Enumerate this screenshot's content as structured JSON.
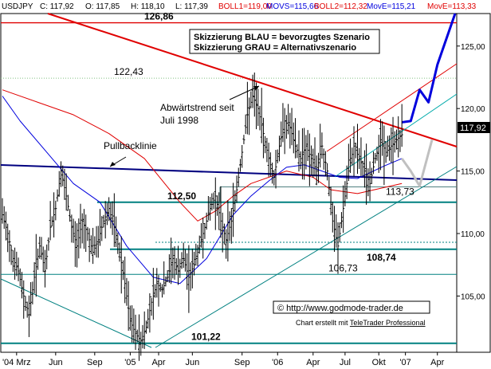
{
  "header": {
    "symbol": "USDJPY",
    "c_label": "C: 117,92",
    "o_label": "O: 117,85",
    "h_label": "H: 118,10",
    "l_label": "L: 117,39",
    "boll1_label": "BOLL1=119,00",
    "movs_label": "MOVS=115,66",
    "boll2_label": "BOLL2=112,32",
    "move_label": "MovE=115,21",
    "move2_label": "MovE=113,33"
  },
  "legend": {
    "line1": "Skizzierung BLAU = bevorzugtes Szenario",
    "line2": "Skizzierung GRAU = Alternativszenario"
  },
  "annotations": {
    "trend_text1": "Abwärtstrend seit",
    "trend_text2": "Juli 1998",
    "pullback_text": "Pullbacklinie",
    "copyright": "© http://www.godmode-trader.de",
    "created_prefix": "Chart erstellt mit ",
    "created_brand": "TeleTrader Professional",
    "last_price": "117,92"
  },
  "colors": {
    "red": "#e00000",
    "navy": "#000080",
    "blue": "#0000dd",
    "teal": "#008080",
    "grey": "#c0c0c0",
    "green_dotted": "#80c080"
  },
  "chart_data": {
    "type": "line",
    "title": "USDJPY",
    "y_axis_ticks": [
      105,
      110,
      115,
      120,
      125
    ],
    "y_axis_tick_labels": [
      "105,00",
      "110,00",
      "115,00",
      "120,00",
      "125,00"
    ],
    "ylim": [
      100.5,
      127.6
    ],
    "x_axis_labels": [
      "'04 Mrz",
      "Jun",
      "Sep",
      "'05",
      "Apr",
      "Jun",
      "Sep",
      "'06",
      "Apr",
      "Jul",
      "Okt",
      "'07",
      "Apr"
    ],
    "levels": [
      {
        "label": "126,86",
        "value": 126.86
      },
      {
        "label": "122,43",
        "value": 122.43
      },
      {
        "label": "112,50",
        "value": 112.5
      },
      {
        "label": "113,73",
        "value": 113.73
      },
      {
        "label": "108,74",
        "value": 108.74
      },
      {
        "label": "106,73",
        "value": 106.73
      },
      {
        "label": "101,22",
        "value": 101.22
      }
    ],
    "series": [
      {
        "name": "USDJPY",
        "values": [
          [
            0,
            111.5
          ],
          [
            3,
            110.0
          ],
          [
            6,
            108.0
          ],
          [
            9,
            107.0
          ],
          [
            12,
            105.0
          ],
          [
            15,
            103.5
          ],
          [
            18,
            106.5
          ],
          [
            21,
            109.0
          ],
          [
            24,
            107.0
          ],
          [
            27,
            110.5
          ],
          [
            30,
            112.0
          ],
          [
            33,
            115.0
          ],
          [
            36,
            113.0
          ],
          [
            39,
            110.5
          ],
          [
            42,
            109.0
          ],
          [
            45,
            111.0
          ],
          [
            48,
            110.0
          ],
          [
            51,
            108.5
          ],
          [
            54,
            109.5
          ],
          [
            57,
            111.0
          ],
          [
            60,
            112.0
          ],
          [
            63,
            110.5
          ],
          [
            66,
            108.5
          ],
          [
            69,
            106.0
          ],
          [
            72,
            103.0
          ],
          [
            75,
            102.0
          ],
          [
            78,
            101.4
          ],
          [
            81,
            102.5
          ],
          [
            84,
            104.5
          ],
          [
            87,
            106.0
          ],
          [
            90,
            105.5
          ],
          [
            93,
            106.5
          ],
          [
            96,
            108.0
          ],
          [
            99,
            107.0
          ],
          [
            102,
            108.0
          ],
          [
            105,
            106.5
          ],
          [
            108,
            107.5
          ],
          [
            111,
            109.0
          ],
          [
            114,
            110.5
          ],
          [
            117,
            112.0
          ],
          [
            120,
            113.0
          ],
          [
            123,
            111.0
          ],
          [
            126,
            109.5
          ],
          [
            129,
            111.0
          ],
          [
            132,
            113.5
          ],
          [
            135,
            116.5
          ],
          [
            138,
            119.5
          ],
          [
            141,
            121.0
          ],
          [
            144,
            120.0
          ],
          [
            147,
            118.0
          ],
          [
            150,
            116.0
          ],
          [
            153,
            114.5
          ],
          [
            156,
            117.0
          ],
          [
            159,
            119.0
          ],
          [
            162,
            118.5
          ],
          [
            165,
            117.0
          ],
          [
            168,
            116.0
          ],
          [
            171,
            117.0
          ],
          [
            174,
            116.0
          ],
          [
            177,
            115.0
          ],
          [
            180,
            117.0
          ],
          [
            183,
            115.0
          ],
          [
            186,
            111.0
          ],
          [
            189,
            109.0
          ],
          [
            192,
            112.0
          ],
          [
            195,
            115.0
          ],
          [
            198,
            117.0
          ],
          [
            201,
            116.0
          ],
          [
            204,
            115.0
          ],
          [
            207,
            114.0
          ],
          [
            210,
            116.0
          ],
          [
            213,
            117.5
          ],
          [
            216,
            116.5
          ],
          [
            219,
            117.0
          ],
          [
            222,
            117.5
          ],
          [
            225,
            117.9
          ]
        ]
      },
      {
        "name": "BOLL",
        "values": [
          [
            0,
            121.5
          ],
          [
            20,
            120.5
          ],
          [
            40,
            119.5
          ],
          [
            60,
            118.0
          ],
          [
            80,
            116.0
          ],
          [
            100,
            112.5
          ],
          [
            110,
            111.0
          ],
          [
            120,
            111.8
          ],
          [
            130,
            113.0
          ],
          [
            140,
            114.0
          ],
          [
            160,
            115.0
          ],
          [
            175,
            114.5
          ],
          [
            185,
            113.5
          ],
          [
            200,
            113.2
          ],
          [
            225,
            114.0
          ]
        ]
      },
      {
        "name": "MOVS",
        "values": [
          [
            0,
            121.0
          ],
          [
            10,
            119.0
          ],
          [
            25,
            116.5
          ],
          [
            40,
            114.0
          ],
          [
            55,
            112.5
          ],
          [
            70,
            109.0
          ],
          [
            85,
            106.5
          ],
          [
            100,
            106.0
          ],
          [
            115,
            108.0
          ],
          [
            130,
            111.5
          ],
          [
            140,
            113.0
          ],
          [
            150,
            114.2
          ],
          [
            160,
            115.3
          ],
          [
            170,
            115.5
          ],
          [
            180,
            115.0
          ],
          [
            190,
            114.5
          ],
          [
            200,
            114.4
          ],
          [
            215,
            115.4
          ],
          [
            225,
            116.0
          ]
        ]
      },
      {
        "name": "Skizzierung BLAU",
        "values": [
          [
            225,
            118.9
          ],
          [
            230,
            119.0
          ],
          [
            235,
            121.5
          ],
          [
            240,
            120.5
          ],
          [
            245,
            123.5
          ],
          [
            255,
            127.6
          ]
        ]
      },
      {
        "name": "Skizzierung GRAU",
        "values": [
          [
            225,
            116.0
          ],
          [
            230,
            115.0
          ],
          [
            235,
            113.8
          ],
          [
            242,
            117.5
          ]
        ]
      }
    ]
  }
}
